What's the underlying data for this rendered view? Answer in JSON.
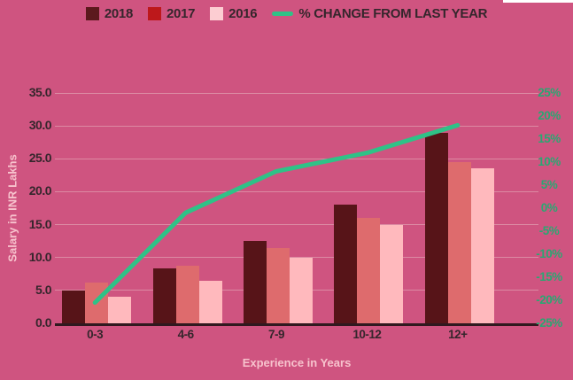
{
  "colors": {
    "background": "#cf5480",
    "dark_text": "#35262c",
    "light_text": "#f7c3cd",
    "gridline": "#dc8aa3",
    "axis_line": "#30191f",
    "right_axis_text": "#2aa772",
    "line": "#2fc287",
    "white_strip": "#ffffff"
  },
  "legend": {
    "items": [
      {
        "label": "2018",
        "type": "square",
        "color": "#5c191d"
      },
      {
        "label": "2017",
        "type": "square",
        "color": "#bd181b"
      },
      {
        "label": "2016",
        "type": "square",
        "color": "#fccdd2"
      },
      {
        "label": "% CHANGE FROM LAST YEAR",
        "type": "line",
        "color": "#2fc287"
      }
    ]
  },
  "chart_data": {
    "type": "bar",
    "categories": [
      "0-3",
      "4-6",
      "7-9",
      "10-12",
      "12+"
    ],
    "series": [
      {
        "name": "2018",
        "color": "#571418",
        "values": [
          5.0,
          8.4,
          12.5,
          18.0,
          29.0
        ]
      },
      {
        "name": "2017",
        "color": "#de6b6d",
        "values": [
          6.2,
          8.8,
          11.5,
          16.0,
          24.5
        ]
      },
      {
        "name": "2016",
        "color": "#ffb9bd",
        "values": [
          4.0,
          6.5,
          10.0,
          15.0,
          23.5
        ]
      }
    ],
    "line_series": {
      "name": "% CHANGE FROM LAST YEAR",
      "color": "#2fc287",
      "axis": "right",
      "values": [
        -20.5,
        -1,
        8,
        12,
        18
      ]
    },
    "title": "",
    "xlabel": "Experience in Years",
    "ylabel": "Salary in INR Lakhs",
    "ylim": [
      0,
      35
    ],
    "y_ticks": [
      "0.0",
      "5.0",
      "10.0",
      "15.0",
      "20.0",
      "25.0",
      "30.0",
      "35.0"
    ],
    "y2lim": [
      -25,
      25
    ],
    "y2_ticks": [
      "-25%",
      "-20%",
      "-15%",
      "-10%",
      "-5%",
      "0%",
      "5%",
      "10%",
      "15%",
      "20%",
      "25%"
    ],
    "grid": true,
    "legend_position": "top"
  }
}
